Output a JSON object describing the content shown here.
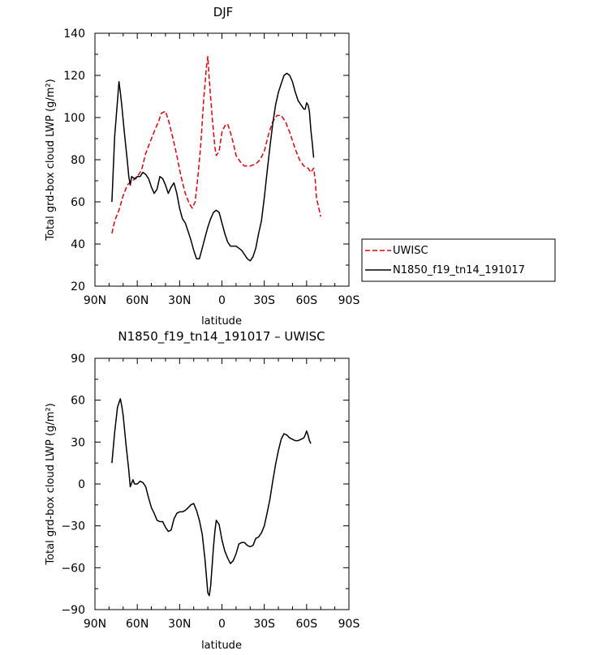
{
  "chart_data": [
    {
      "type": "line",
      "title": "DJF",
      "xlabel": "latitude",
      "ylabel": "Total grd-box cloud LWP (g/m²)",
      "xlim": [
        90,
        -90
      ],
      "ylim": [
        20,
        140
      ],
      "xticks": [
        90,
        60,
        30,
        0,
        -30,
        -60,
        -90
      ],
      "xtick_labels": [
        "90N",
        "60N",
        "30N",
        "0",
        "30S",
        "60S",
        "90S"
      ],
      "yticks": [
        20,
        40,
        60,
        80,
        100,
        120,
        140
      ],
      "ytick_labels": [
        "20",
        "40",
        "60",
        "80",
        "100",
        "120",
        "140"
      ],
      "grid": false,
      "legend_position": "right",
      "series": [
        {
          "name": "UWISC",
          "color": "#e8000b",
          "dash": "dashed",
          "points": [
            [
              78,
              45
            ],
            [
              76,
              51
            ],
            [
              73,
              56
            ],
            [
              70,
              63
            ],
            [
              67,
              68
            ],
            [
              64,
              70
            ],
            [
              61,
              71
            ],
            [
              57,
              75
            ],
            [
              54,
              83
            ],
            [
              50,
              90
            ],
            [
              47,
              95
            ],
            [
              45,
              98
            ],
            [
              43,
              102
            ],
            [
              40,
              103
            ],
            [
              38,
              99
            ],
            [
              35,
              91
            ],
            [
              32,
              82
            ],
            [
              29,
              72
            ],
            [
              26,
              64
            ],
            [
              23,
              59
            ],
            [
              21,
              57
            ],
            [
              19,
              60
            ],
            [
              17,
              72
            ],
            [
              15,
              87
            ],
            [
              13,
              108
            ],
            [
              11,
              124
            ],
            [
              10,
              129
            ],
            [
              9,
              118
            ],
            [
              7,
              101
            ],
            [
              5,
              86
            ],
            [
              4,
              82
            ],
            [
              2,
              84
            ],
            [
              0,
              93
            ],
            [
              -2,
              96
            ],
            [
              -4,
              97
            ],
            [
              -6,
              93
            ],
            [
              -8,
              88
            ],
            [
              -10,
              82
            ],
            [
              -13,
              79
            ],
            [
              -16,
              77
            ],
            [
              -20,
              77
            ],
            [
              -24,
              78
            ],
            [
              -27,
              80
            ],
            [
              -30,
              84
            ],
            [
              -33,
              92
            ],
            [
              -36,
              98
            ],
            [
              -39,
              101
            ],
            [
              -42,
              101
            ],
            [
              -45,
              98
            ],
            [
              -48,
              93
            ],
            [
              -52,
              85
            ],
            [
              -55,
              80
            ],
            [
              -58,
              77
            ],
            [
              -61,
              76
            ],
            [
              -63,
              74
            ],
            [
              -64,
              75
            ],
            [
              -65,
              76
            ],
            [
              -66,
              71
            ],
            [
              -67,
              62
            ],
            [
              -69,
              56
            ],
            [
              -70,
              53
            ]
          ]
        },
        {
          "name": "N1850_f19_tn14_191017",
          "color": "#000000",
          "dash": "solid",
          "points": [
            [
              78,
              60
            ],
            [
              76,
              91
            ],
            [
              74,
              108
            ],
            [
              73,
              117
            ],
            [
              72,
              112
            ],
            [
              71,
              106
            ],
            [
              69,
              92
            ],
            [
              67,
              79
            ],
            [
              66,
              72
            ],
            [
              65,
              68
            ],
            [
              64,
              72
            ],
            [
              62,
              71
            ],
            [
              60,
              72
            ],
            [
              58,
              72
            ],
            [
              56,
              74
            ],
            [
              54,
              73
            ],
            [
              52,
              71
            ],
            [
              50,
              67
            ],
            [
              48,
              64
            ],
            [
              46,
              66
            ],
            [
              44,
              72
            ],
            [
              42,
              71
            ],
            [
              40,
              68
            ],
            [
              38,
              64
            ],
            [
              36,
              67
            ],
            [
              34,
              69
            ],
            [
              32,
              64
            ],
            [
              30,
              57
            ],
            [
              28,
              52
            ],
            [
              26,
              50
            ],
            [
              24,
              46
            ],
            [
              22,
              42
            ],
            [
              20,
              37
            ],
            [
              18,
              33
            ],
            [
              16,
              33
            ],
            [
              14,
              38
            ],
            [
              12,
              43
            ],
            [
              10,
              48
            ],
            [
              8,
              52
            ],
            [
              6,
              55
            ],
            [
              4,
              56
            ],
            [
              2,
              55
            ],
            [
              0,
              50
            ],
            [
              -2,
              45
            ],
            [
              -4,
              41
            ],
            [
              -6,
              39
            ],
            [
              -8,
              39
            ],
            [
              -10,
              39
            ],
            [
              -12,
              38
            ],
            [
              -14,
              37
            ],
            [
              -16,
              35
            ],
            [
              -18,
              33
            ],
            [
              -20,
              32
            ],
            [
              -22,
              34
            ],
            [
              -24,
              38
            ],
            [
              -26,
              45
            ],
            [
              -28,
              51
            ],
            [
              -30,
              62
            ],
            [
              -32,
              74
            ],
            [
              -34,
              86
            ],
            [
              -36,
              97
            ],
            [
              -38,
              106
            ],
            [
              -40,
              112
            ],
            [
              -42,
              116
            ],
            [
              -44,
              120
            ],
            [
              -46,
              121
            ],
            [
              -48,
              120
            ],
            [
              -50,
              117
            ],
            [
              -52,
              112
            ],
            [
              -54,
              108
            ],
            [
              -56,
              106
            ],
            [
              -58,
              104
            ],
            [
              -59,
              104
            ],
            [
              -60,
              107
            ],
            [
              -61,
              106
            ],
            [
              -62,
              103
            ],
            [
              -63,
              94
            ],
            [
              -64,
              88
            ],
            [
              -65,
              81
            ]
          ]
        }
      ]
    },
    {
      "type": "line",
      "title": "N1850_f19_tn14_191017 – UWISC",
      "xlabel": "latitude",
      "ylabel": "Total grd-box cloud LWP (g/m²)",
      "xlim": [
        90,
        -90
      ],
      "ylim": [
        -90,
        90
      ],
      "xticks": [
        90,
        60,
        30,
        0,
        -30,
        -60,
        -90
      ],
      "xtick_labels": [
        "90N",
        "60N",
        "30N",
        "0",
        "30S",
        "60S",
        "90S"
      ],
      "yticks": [
        -90,
        -60,
        -30,
        0,
        30,
        60,
        90
      ],
      "ytick_labels": [
        "−90",
        "−60",
        "−30",
        "0",
        "30",
        "60",
        "90"
      ],
      "grid": false,
      "series": [
        {
          "color": "#000000",
          "dash": "solid",
          "points": [
            [
              78,
              15
            ],
            [
              76,
              37
            ],
            [
              74,
              55
            ],
            [
              72,
              61
            ],
            [
              71,
              56
            ],
            [
              70,
              49
            ],
            [
              68,
              28
            ],
            [
              66,
              10
            ],
            [
              65,
              -2
            ],
            [
              63,
              3
            ],
            [
              62,
              0
            ],
            [
              60,
              0
            ],
            [
              58,
              2
            ],
            [
              56,
              1
            ],
            [
              54,
              -2
            ],
            [
              52,
              -10
            ],
            [
              50,
              -17
            ],
            [
              48,
              -21
            ],
            [
              46,
              -26
            ],
            [
              44,
              -27
            ],
            [
              42,
              -27
            ],
            [
              40,
              -31
            ],
            [
              38,
              -34
            ],
            [
              36,
              -33
            ],
            [
              34,
              -25
            ],
            [
              32,
              -21
            ],
            [
              30,
              -20
            ],
            [
              28,
              -20
            ],
            [
              26,
              -19
            ],
            [
              24,
              -17
            ],
            [
              22,
              -15
            ],
            [
              20,
              -14
            ],
            [
              18,
              -19
            ],
            [
              16,
              -26
            ],
            [
              14,
              -36
            ],
            [
              12,
              -54
            ],
            [
              10,
              -78
            ],
            [
              9,
              -80
            ],
            [
              8,
              -73
            ],
            [
              6,
              -45
            ],
            [
              5,
              -34
            ],
            [
              4,
              -26
            ],
            [
              2,
              -29
            ],
            [
              0,
              -40
            ],
            [
              -2,
              -48
            ],
            [
              -4,
              -53
            ],
            [
              -6,
              -57
            ],
            [
              -8,
              -55
            ],
            [
              -10,
              -50
            ],
            [
              -12,
              -43
            ],
            [
              -14,
              -42
            ],
            [
              -16,
              -42
            ],
            [
              -18,
              -44
            ],
            [
              -20,
              -45
            ],
            [
              -22,
              -44
            ],
            [
              -24,
              -39
            ],
            [
              -26,
              -38
            ],
            [
              -28,
              -35
            ],
            [
              -30,
              -30
            ],
            [
              -32,
              -21
            ],
            [
              -34,
              -11
            ],
            [
              -36,
              2
            ],
            [
              -38,
              14
            ],
            [
              -40,
              24
            ],
            [
              -42,
              32
            ],
            [
              -44,
              36
            ],
            [
              -46,
              35
            ],
            [
              -48,
              33
            ],
            [
              -50,
              32
            ],
            [
              -52,
              31
            ],
            [
              -54,
              31
            ],
            [
              -56,
              32
            ],
            [
              -58,
              33
            ],
            [
              -59,
              35
            ],
            [
              -60,
              38
            ],
            [
              -61,
              35
            ],
            [
              -62,
              31
            ],
            [
              -63,
              29
            ]
          ]
        }
      ]
    }
  ]
}
